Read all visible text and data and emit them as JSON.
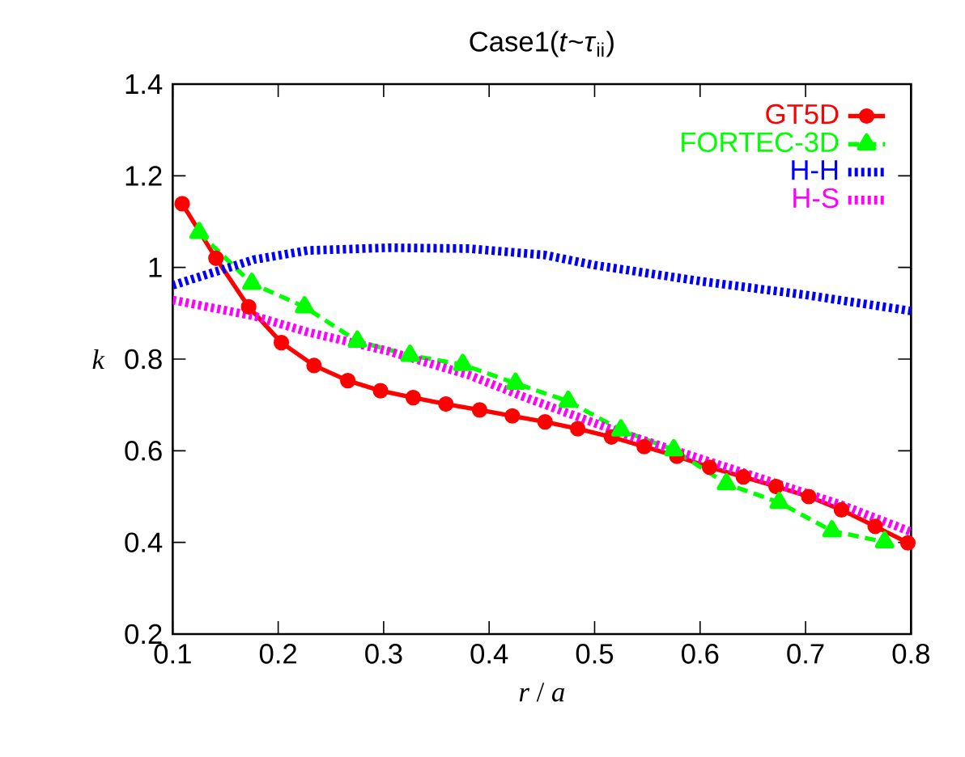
{
  "chart_data": {
    "type": "line",
    "title": "Case1(*t*~*τ*$_{ii}$)",
    "xlabel": "*r* / *a*",
    "ylabel": "*k*",
    "xlim": [
      0.1,
      0.8
    ],
    "ylim": [
      0.2,
      1.4
    ],
    "xticks": [
      0.1,
      0.2,
      0.3,
      0.4,
      0.5,
      0.6,
      0.7,
      0.8
    ],
    "yticks": [
      0.2,
      0.4,
      0.6,
      0.8,
      1,
      1.2,
      1.4
    ],
    "legend": "top right",
    "grid": false,
    "series": [
      {
        "name": "GT5D",
        "color": "#ff0000",
        "marker": "circle",
        "line_style": "solid",
        "x": [
          0.109,
          0.141,
          0.172,
          0.203,
          0.234,
          0.266,
          0.297,
          0.328,
          0.359,
          0.391,
          0.422,
          0.453,
          0.484,
          0.516,
          0.547,
          0.578,
          0.609,
          0.641,
          0.672,
          0.703,
          0.734,
          0.766,
          0.797
        ],
        "values": [
          1.139,
          1.02,
          0.914,
          0.836,
          0.786,
          0.753,
          0.731,
          0.716,
          0.702,
          0.689,
          0.676,
          0.663,
          0.648,
          0.63,
          0.609,
          0.588,
          0.564,
          0.543,
          0.522,
          0.5,
          0.471,
          0.435,
          0.399
        ]
      },
      {
        "name": "FORTEC-3D",
        "color": "#00ff00",
        "marker": "triangle",
        "line_style": "dashed",
        "x": [
          0.125,
          0.175,
          0.225,
          0.275,
          0.325,
          0.375,
          0.425,
          0.475,
          0.525,
          0.575,
          0.625,
          0.675,
          0.725,
          0.775
        ],
        "values": [
          1.076,
          0.965,
          0.914,
          0.839,
          0.808,
          0.788,
          0.747,
          0.708,
          0.645,
          0.602,
          0.528,
          0.487,
          0.425,
          0.401
        ]
      },
      {
        "name": "H-H",
        "color": "#0000ff",
        "marker": "none",
        "line_style": "dotted",
        "x": [
          0.1,
          0.177,
          0.228,
          0.305,
          0.381,
          0.453,
          0.5,
          0.6,
          0.7,
          0.8
        ],
        "values": [
          0.961,
          1.017,
          1.037,
          1.043,
          1.041,
          1.027,
          1.005,
          0.97,
          0.94,
          0.905
        ]
      },
      {
        "name": "H-S",
        "color": "#ff00ff",
        "marker": "none",
        "line_style": "dotted",
        "x": [
          0.1,
          0.177,
          0.228,
          0.305,
          0.381,
          0.43,
          0.53,
          0.632,
          0.734,
          0.8
        ],
        "values": [
          0.929,
          0.894,
          0.859,
          0.817,
          0.765,
          0.72,
          0.635,
          0.559,
          0.482,
          0.423
        ]
      }
    ]
  }
}
